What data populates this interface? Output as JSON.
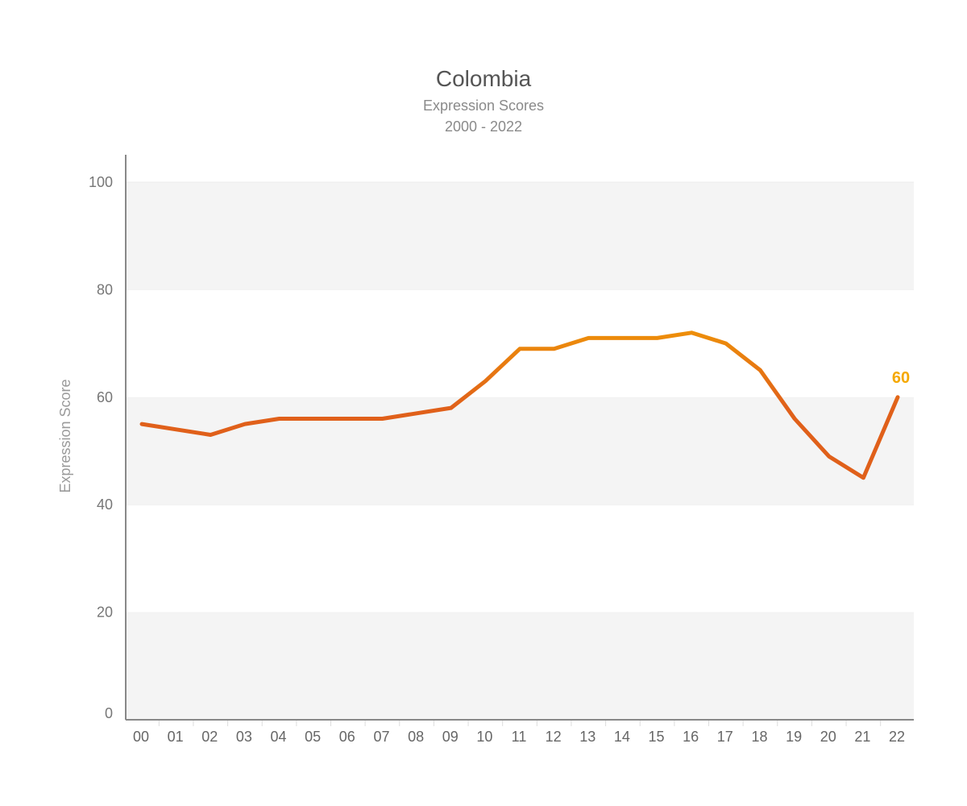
{
  "chart_data": {
    "type": "line",
    "title": "Colombia",
    "subtitle": "Expression Scores",
    "subtitle2": "2000 - 2022",
    "xlabel": "",
    "ylabel": "Expression Score",
    "ylim": [
      0,
      100
    ],
    "yticks": [
      "0",
      "20",
      "40",
      "60",
      "80",
      "100"
    ],
    "categories": [
      "00",
      "01",
      "02",
      "03",
      "04",
      "05",
      "06",
      "07",
      "08",
      "09",
      "10",
      "11",
      "12",
      "13",
      "14",
      "15",
      "16",
      "17",
      "18",
      "19",
      "20",
      "21",
      "22"
    ],
    "series": [
      {
        "values": [
          55,
          54,
          53,
          55,
          56,
          56,
          56,
          56,
          57,
          58,
          63,
          69,
          69,
          71,
          71,
          71,
          72,
          70,
          65,
          56,
          49,
          45,
          60
        ]
      }
    ],
    "end_label": "60",
    "band_color": "#f4f4f4",
    "line_color_low": "#e0601a",
    "line_color_high": "#f5a800",
    "axis_color": "#888888"
  }
}
